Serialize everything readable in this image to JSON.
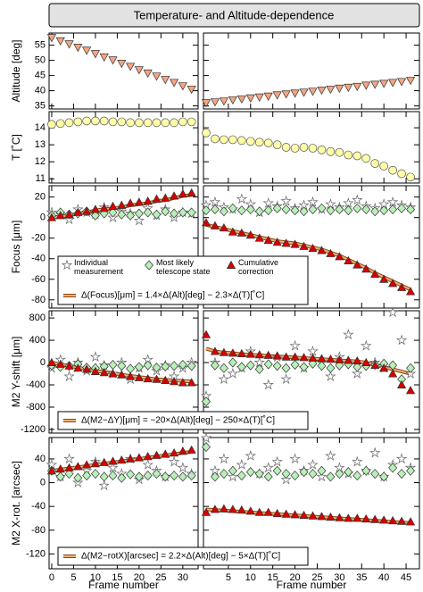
{
  "title": "Temperature- and Altitude-dependence",
  "chart_data": [
    {
      "type": "scatter",
      "ylabel": "Altitude [deg]",
      "x": [
        0,
        2,
        4,
        6,
        8,
        10,
        12,
        14,
        16,
        18,
        20,
        22,
        24,
        26,
        28,
        30,
        32
      ],
      "xlim": [
        -0.6,
        33.5
      ],
      "xticks": [
        0,
        5,
        10,
        15,
        20,
        25,
        30
      ],
      "ylim": [
        34,
        59
      ],
      "yticks": [
        35,
        40,
        45,
        50,
        55
      ],
      "series": [
        {
          "marker": "triangle-down",
          "color": "#f4a582",
          "values": [
            57.5,
            56.4,
            55.4,
            54.3,
            53.3,
            52.2,
            51.1,
            50.1,
            49,
            48,
            46.9,
            45.8,
            44.8,
            43.7,
            42.7,
            41.6,
            40.5
          ]
        }
      ]
    },
    {
      "type": "scatter",
      "x": [
        0,
        2,
        4,
        6,
        8,
        10,
        12,
        14,
        16,
        18,
        20,
        22,
        24,
        26,
        28,
        30,
        32,
        34,
        36,
        38,
        40,
        42,
        44,
        46
      ],
      "xlim": [
        -0.6,
        48
      ],
      "xticks": [
        5,
        10,
        15,
        20,
        25,
        30,
        35,
        40,
        45
      ],
      "ylim": [
        34,
        59
      ],
      "yticks": [
        35,
        40,
        45,
        50,
        55
      ],
      "series": [
        {
          "marker": "triangle-down",
          "color": "#f4a582",
          "values": [
            36,
            36.3,
            36.6,
            37,
            37.3,
            37.6,
            37.9,
            38.2,
            38.6,
            38.9,
            39.2,
            39.5,
            39.8,
            40.2,
            40.5,
            40.8,
            41.1,
            41.4,
            41.8,
            42.1,
            42.4,
            42.7,
            43,
            43.4
          ]
        }
      ]
    },
    {
      "type": "scatter",
      "ylabel": "T [˚C]",
      "x": [
        0,
        2,
        4,
        6,
        8,
        10,
        12,
        14,
        16,
        18,
        20,
        22,
        24,
        26,
        28,
        30,
        32
      ],
      "xlim": [
        -0.6,
        33.5
      ],
      "xticks": [
        0,
        5,
        10,
        15,
        20,
        25,
        30
      ],
      "ylim": [
        10.75,
        14.95
      ],
      "yticks": [
        11,
        12,
        13,
        14
      ],
      "series": [
        {
          "marker": "circle",
          "color": "#ffffa8",
          "values": [
            14.2,
            14.25,
            14.3,
            14.35,
            14.4,
            14.4,
            14.4,
            14.35,
            14.35,
            14.3,
            14.3,
            14.3,
            14.3,
            14.3,
            14.3,
            14.35,
            14.35
          ]
        }
      ]
    },
    {
      "type": "scatter",
      "x": [
        0,
        2,
        4,
        6,
        8,
        10,
        12,
        14,
        16,
        18,
        20,
        22,
        24,
        26,
        28,
        30,
        32,
        34,
        36,
        38,
        40,
        42,
        44,
        46
      ],
      "xlim": [
        -0.6,
        48
      ],
      "xticks": [
        5,
        10,
        15,
        20,
        25,
        30,
        35,
        40,
        45
      ],
      "ylim": [
        10.75,
        14.95
      ],
      "yticks": [
        11,
        12,
        13,
        14
      ],
      "series": [
        {
          "marker": "circle",
          "color": "#ffffa8",
          "values": [
            13.7,
            13.35,
            13.3,
            13.3,
            13.25,
            13.2,
            13.15,
            13.1,
            13,
            12.85,
            12.8,
            12.85,
            12.8,
            12.7,
            12.6,
            12.55,
            12.4,
            12.35,
            12.2,
            11.9,
            11.75,
            11.5,
            11.3,
            11.1
          ]
        }
      ]
    },
    {
      "type": "scatter",
      "ylabel": "Focus [μm]",
      "x": [
        0,
        2,
        4,
        6,
        8,
        10,
        12,
        14,
        16,
        18,
        20,
        22,
        24,
        26,
        28,
        30,
        32
      ],
      "xlim": [
        -0.6,
        33.5
      ],
      "xticks": [
        0,
        5,
        10,
        15,
        20,
        25,
        30
      ],
      "ylim": [
        -88,
        31
      ],
      "yticks": [
        -80,
        -60,
        -40,
        -20,
        0,
        20
      ],
      "series": [
        {
          "name": "Individual measurement",
          "marker": "star",
          "color": "#ffffff",
          "values": [
            5,
            3,
            -2,
            8,
            5,
            3,
            10,
            0,
            6,
            4,
            -3,
            9,
            2,
            8,
            0,
            5,
            4
          ]
        },
        {
          "name": "Most likely telescope state",
          "marker": "diamond",
          "color": "#b8f0b8",
          "values": [
            2,
            5,
            3,
            4,
            6,
            2,
            4,
            5,
            3,
            2,
            4,
            5,
            3,
            6,
            4,
            5,
            5
          ]
        },
        {
          "name": "Cumulative correction",
          "marker": "triangle",
          "color": "#d80000",
          "values": [
            0,
            2,
            3,
            5,
            6,
            8,
            9,
            11,
            12,
            14,
            15,
            16,
            18,
            19,
            21,
            23,
            24
          ]
        },
        {
          "name": "Δ(Focus)[μm] = 1.4×Δ(Alt)[deg] − 2.3×Δ(T)[˚C]",
          "marker": "line",
          "color": "#f0b070",
          "values": [
            0,
            1,
            2,
            4,
            5,
            7,
            8,
            9,
            10,
            12,
            13,
            14,
            16,
            17,
            19,
            21,
            22
          ]
        }
      ]
    },
    {
      "type": "scatter",
      "x": [
        0,
        2,
        4,
        6,
        8,
        10,
        12,
        14,
        16,
        18,
        20,
        22,
        24,
        26,
        28,
        30,
        32,
        34,
        36,
        38,
        40,
        42,
        44,
        46
      ],
      "xlim": [
        -0.6,
        48
      ],
      "xticks": [
        5,
        10,
        15,
        20,
        25,
        30,
        35,
        40,
        45
      ],
      "ylim": [
        -88,
        31
      ],
      "yticks": [
        -80,
        -60,
        -40,
        -20,
        0,
        20
      ],
      "series": [
        {
          "marker": "star",
          "color": "#ffffff",
          "values": [
            12,
            15,
            10,
            8,
            18,
            13,
            5,
            14,
            11,
            16,
            9,
            12,
            15,
            8,
            13,
            10,
            14,
            17,
            11,
            9,
            13,
            15,
            12,
            10
          ]
        },
        {
          "marker": "diamond",
          "color": "#b8f0b8",
          "values": [
            7,
            8,
            6,
            9,
            7,
            8,
            6,
            7,
            9,
            8,
            7,
            6,
            8,
            9,
            7,
            8,
            7,
            9,
            8,
            6,
            7,
            8,
            9,
            8
          ]
        },
        {
          "marker": "triangle",
          "color": "#d80000",
          "values": [
            -5,
            -8,
            -10,
            -14,
            -15,
            -17,
            -20,
            -22,
            -24,
            -25,
            -26,
            -28,
            -30,
            -32,
            -35,
            -38,
            -42,
            -46,
            -50,
            -55,
            -60,
            -64,
            -68,
            -72
          ]
        },
        {
          "marker": "line",
          "color": "#f0b070",
          "values": [
            -7,
            -9,
            -11,
            -13,
            -15,
            -17,
            -19,
            -21,
            -23,
            -24,
            -25,
            -27,
            -29,
            -31,
            -34,
            -37,
            -41,
            -45,
            -49,
            -54,
            -58,
            -62,
            -66,
            -70
          ]
        }
      ]
    },
    {
      "type": "scatter",
      "ylabel": "M2 Y-shift [μm]",
      "x": [
        0,
        2,
        4,
        6,
        8,
        10,
        12,
        14,
        16,
        18,
        20,
        22,
        24,
        26,
        28,
        30,
        32
      ],
      "xlim": [
        -0.6,
        33.5
      ],
      "xticks": [
        0,
        5,
        10,
        15,
        20,
        25,
        30
      ],
      "ylim": [
        -1265,
        930
      ],
      "yticks": [
        -1200,
        -800,
        -400,
        0,
        400,
        800
      ],
      "series": [
        {
          "marker": "star",
          "color": "#ffffff",
          "values": [
            -100,
            50,
            -250,
            0,
            -150,
            100,
            -50,
            -200,
            0,
            -300,
            -100,
            50,
            -150,
            -50,
            -250,
            -100,
            0
          ]
        },
        {
          "marker": "diamond",
          "color": "#b8f0b8",
          "values": [
            -50,
            -80,
            -60,
            -30,
            -90,
            -100,
            -70,
            -40,
            -60,
            -110,
            -80,
            -50,
            -90,
            -70,
            -60,
            -40,
            -60
          ]
        },
        {
          "marker": "triangle",
          "color": "#d80000",
          "values": [
            0,
            -30,
            -60,
            -100,
            -120,
            -160,
            -180,
            -200,
            -220,
            -250,
            -270,
            -290,
            -300,
            -320,
            -340,
            -360,
            -360
          ]
        },
        {
          "name": "Δ(M2−ΔY)[μm] = −20×Δ(Alt)[deg] − 250×Δ(T)[˚C]",
          "marker": "line",
          "color": "#f0b070",
          "values": [
            0,
            -30,
            -60,
            -90,
            -120,
            -150,
            -170,
            -190,
            -220,
            -240,
            -260,
            -280,
            -300,
            -310,
            -320,
            -330,
            -340
          ]
        }
      ]
    },
    {
      "type": "scatter",
      "x": [
        0,
        2,
        4,
        6,
        8,
        10,
        12,
        14,
        16,
        18,
        20,
        22,
        24,
        26,
        28,
        30,
        32,
        34,
        36,
        38,
        40,
        42,
        44,
        46
      ],
      "xlim": [
        -0.6,
        48
      ],
      "xticks": [
        5,
        10,
        15,
        20,
        25,
        30,
        35,
        40,
        45
      ],
      "ylim": [
        -1265,
        930
      ],
      "yticks": [
        -1200,
        -800,
        -400,
        0,
        400,
        800
      ],
      "series": [
        {
          "marker": "star",
          "color": "#ffffff",
          "values": [
            -600,
            0,
            -300,
            -200,
            -100,
            200,
            0,
            -400,
            100,
            -300,
            300,
            -100,
            200,
            0,
            -250,
            100,
            500,
            -200,
            300,
            0,
            -100,
            900,
            400,
            -200
          ]
        },
        {
          "marker": "diamond",
          "color": "#b8f0b8",
          "values": [
            -700,
            -50,
            -100,
            0,
            -80,
            -50,
            -120,
            -30,
            -60,
            -100,
            -40,
            -80,
            -20,
            -60,
            -100,
            -50,
            -30,
            -80,
            -60,
            -40,
            -20,
            -50,
            -300,
            -100
          ]
        },
        {
          "marker": "triangle",
          "color": "#d80000",
          "values": [
            500,
            200,
            180,
            170,
            160,
            150,
            140,
            130,
            120,
            100,
            100,
            90,
            80,
            70,
            60,
            50,
            40,
            30,
            0,
            -50,
            -100,
            -200,
            -400,
            -500
          ]
        },
        {
          "marker": "line",
          "color": "#f0b070",
          "values": [
            250,
            200,
            180,
            170,
            150,
            140,
            130,
            120,
            110,
            100,
            90,
            80,
            70,
            60,
            50,
            40,
            30,
            20,
            0,
            -40,
            -80,
            -120,
            -160,
            -200
          ]
        }
      ]
    },
    {
      "type": "scatter",
      "ylabel": "M2 X-rot. [arcsec]",
      "xlabel": "Frame number",
      "x": [
        0,
        2,
        4,
        6,
        8,
        10,
        12,
        14,
        16,
        18,
        20,
        22,
        24,
        26,
        28,
        30,
        32
      ],
      "xlim": [
        -0.6,
        33.5
      ],
      "xticks": [
        0,
        5,
        10,
        15,
        20,
        25,
        30
      ],
      "ylim": [
        -145,
        76
      ],
      "yticks": [
        -120,
        -80,
        -40,
        0,
        40
      ],
      "series": [
        {
          "marker": "star",
          "color": "#ffffff",
          "values": [
            30,
            10,
            40,
            0,
            20,
            35,
            -5,
            25,
            15,
            40,
            5,
            30,
            20,
            10,
            35,
            25,
            15
          ]
        },
        {
          "marker": "diamond",
          "color": "#b8f0b8",
          "values": [
            20,
            10,
            15,
            8,
            12,
            15,
            10,
            12,
            8,
            14,
            10,
            12,
            15,
            10,
            12,
            10,
            12
          ]
        },
        {
          "marker": "triangle",
          "color": "#d80000",
          "values": [
            20,
            23,
            25,
            27,
            30,
            32,
            34,
            36,
            38,
            40,
            42,
            44,
            46,
            48,
            50,
            53,
            55
          ]
        },
        {
          "name": "Δ(M2−rotX)[arcsec] = 2.2×Δ(Alt)[deg] − 5×Δ(T)[˚C]",
          "marker": "line",
          "color": "#f0b070",
          "values": [
            20,
            22,
            24,
            26,
            28,
            30,
            32,
            34,
            36,
            38,
            40,
            42,
            44,
            46,
            48,
            50,
            52
          ]
        }
      ]
    },
    {
      "type": "scatter",
      "xlabel": "Frame number",
      "x": [
        0,
        2,
        4,
        6,
        8,
        10,
        12,
        14,
        16,
        18,
        20,
        22,
        24,
        26,
        28,
        30,
        32,
        34,
        36,
        38,
        40,
        42,
        44,
        46
      ],
      "xlim": [
        -0.6,
        48
      ],
      "xticks": [
        5,
        10,
        15,
        20,
        25,
        30,
        35,
        40,
        45
      ],
      "ylim": [
        -145,
        76
      ],
      "yticks": [
        -120,
        -80,
        -40,
        0,
        40
      ],
      "series": [
        {
          "marker": "star",
          "color": "#ffffff",
          "values": [
            75,
            20,
            40,
            10,
            30,
            45,
            15,
            25,
            35,
            5,
            40,
            20,
            30,
            10,
            45,
            25,
            15,
            35,
            20,
            50,
            10,
            30,
            40,
            25
          ]
        },
        {
          "marker": "diamond",
          "color": "#b8f0b8",
          "values": [
            60,
            10,
            15,
            20,
            12,
            18,
            15,
            10,
            20,
            15,
            12,
            18,
            15,
            20,
            10,
            15,
            18,
            12,
            20,
            15,
            10,
            25,
            15,
            20
          ]
        },
        {
          "marker": "triangle",
          "color": "#d80000",
          "values": [
            -50,
            -45,
            -44,
            -45,
            -46,
            -48,
            -50,
            -50,
            -52,
            -53,
            -54,
            -55,
            -56,
            -57,
            -58,
            -59,
            -60,
            -60,
            -61,
            -62,
            -63,
            -64,
            -65,
            -66
          ]
        },
        {
          "marker": "line",
          "color": "#f0b070",
          "values": [
            -45,
            -46,
            -47,
            -48,
            -49,
            -50,
            -51,
            -52,
            -53,
            -54,
            -55,
            -56,
            -57,
            -58,
            -59,
            -60,
            -61,
            -62,
            -63,
            -64,
            -65,
            -66,
            -67,
            -68
          ]
        }
      ]
    }
  ]
}
